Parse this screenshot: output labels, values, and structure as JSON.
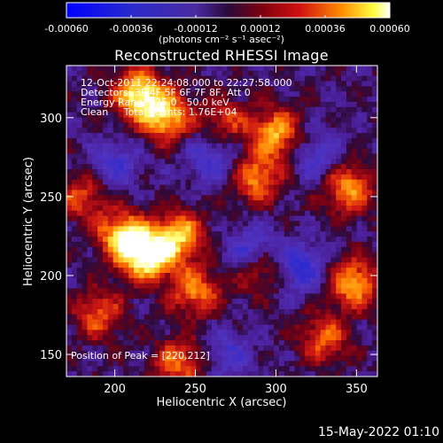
{
  "chart_data": {
    "type": "heatmap",
    "title": "Reconstructed RHESSI Image",
    "xlabel": "Heliocentric X (arcsec)",
    "ylabel": "Heliocentric Y (arcsec)",
    "xlim": [
      170,
      363
    ],
    "ylim": [
      136,
      333
    ],
    "x_ticks": [
      200,
      250,
      300,
      350
    ],
    "y_ticks": [
      150,
      200,
      250,
      300
    ],
    "colorbar": {
      "min": -0.0006,
      "max": 0.0006,
      "ticks": [
        "-0.00060",
        "-0.00036",
        "-0.00012",
        "0.00012",
        "0.00036",
        "0.00060"
      ],
      "units": "(photons cm⁻² s⁻¹ asec⁻²)"
    },
    "annotations": [
      "12-Oct-2011 22:24:08.000 to 22:27:58.000",
      "Detectors: 3F 4F 5F 6F 7F 8F, Att 0",
      "Energy Range: 25.0 - 50.0 keV",
      "Clean     Total counts: 1.76E+04"
    ],
    "peak_text": "Position of Peak = [220,212]",
    "bright_regions": [
      {
        "x": 215,
        "y": 315,
        "level": 0.95
      },
      {
        "x": 232,
        "y": 300,
        "level": 0.8
      },
      {
        "x": 220,
        "y": 212,
        "level": 1.0
      },
      {
        "x": 205,
        "y": 225,
        "level": 0.85
      },
      {
        "x": 240,
        "y": 225,
        "level": 0.8
      },
      {
        "x": 300,
        "y": 290,
        "level": 0.75
      },
      {
        "x": 288,
        "y": 262,
        "level": 0.65
      },
      {
        "x": 345,
        "y": 255,
        "level": 0.7
      },
      {
        "x": 290,
        "y": 205,
        "level": 0.6
      },
      {
        "x": 348,
        "y": 195,
        "level": 0.75
      },
      {
        "x": 250,
        "y": 190,
        "level": 0.65
      },
      {
        "x": 190,
        "y": 175,
        "level": 0.55
      },
      {
        "x": 240,
        "y": 145,
        "level": 0.6
      },
      {
        "x": 330,
        "y": 160,
        "level": 0.55
      },
      {
        "x": 268,
        "y": 298,
        "level": 0.45
      },
      {
        "x": 180,
        "y": 250,
        "level": 0.5
      }
    ],
    "dark_regions": [
      {
        "x": 285,
        "y": 215,
        "level": -0.6
      },
      {
        "x": 315,
        "y": 205,
        "level": -0.55
      },
      {
        "x": 260,
        "y": 275,
        "level": -0.45
      },
      {
        "x": 200,
        "y": 270,
        "level": -0.4
      },
      {
        "x": 325,
        "y": 275,
        "level": -0.4
      },
      {
        "x": 270,
        "y": 150,
        "level": -0.35
      }
    ]
  },
  "footer": {
    "timestamp": "15-May-2022 01:10"
  }
}
